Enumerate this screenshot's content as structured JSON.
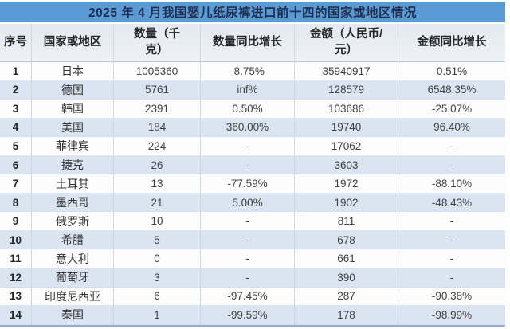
{
  "title": "2025 年 4 月我国婴儿纸尿裤进口前十四的国家或地区情况",
  "chart_data": {
    "type": "table",
    "title": "2025 年 4 月我国婴儿纸尿裤进口前十四的国家或地区情况",
    "columns": [
      "序号",
      "国家或地区",
      "数量（千\n克）",
      "数量同比增长",
      "金额（人民币/\n元）",
      "金额同比增长"
    ],
    "rows": [
      [
        "1",
        "日本",
        "1005360",
        "-8.75%",
        "35940917",
        "0.51%"
      ],
      [
        "2",
        "德国",
        "5761",
        "inf%",
        "128579",
        "6548.35%"
      ],
      [
        "3",
        "韩国",
        "2391",
        "0.50%",
        "103686",
        "-25.07%"
      ],
      [
        "4",
        "美国",
        "184",
        "360.00%",
        "19740",
        "96.40%"
      ],
      [
        "5",
        "菲律宾",
        "224",
        "-",
        "17062",
        "-"
      ],
      [
        "6",
        "捷克",
        "26",
        "-",
        "3603",
        "-"
      ],
      [
        "7",
        "土耳其",
        "13",
        "-77.59%",
        "1972",
        "-88.10%"
      ],
      [
        "8",
        "墨西哥",
        "21",
        "5.00%",
        "1902",
        "-48.43%"
      ],
      [
        "9",
        "俄罗斯",
        "10",
        "-",
        "811",
        "-"
      ],
      [
        "10",
        "希腊",
        "5",
        "-",
        "678",
        "-"
      ],
      [
        "11",
        "意大利",
        "0",
        "-",
        "661",
        "-"
      ],
      [
        "12",
        "葡萄牙",
        "3",
        "-",
        "390",
        "-"
      ],
      [
        "13",
        "印度尼西亚",
        "6",
        "-97.45%",
        "287",
        "-90.38%"
      ],
      [
        "14",
        "泰国",
        "1",
        "-99.59%",
        "178",
        "-98.99%"
      ]
    ]
  },
  "colors": {
    "title_bar": "#5b9bd5",
    "title_text": "#1e2f4f",
    "header_bg": "#e7ebf2",
    "band_row_bg": "#dbe5f1",
    "plain_row_bg": "#fdfdfe",
    "grid_line": "#ccd6e4",
    "bottom_border": "#8faedc",
    "data_text": "#3f3f3f"
  }
}
